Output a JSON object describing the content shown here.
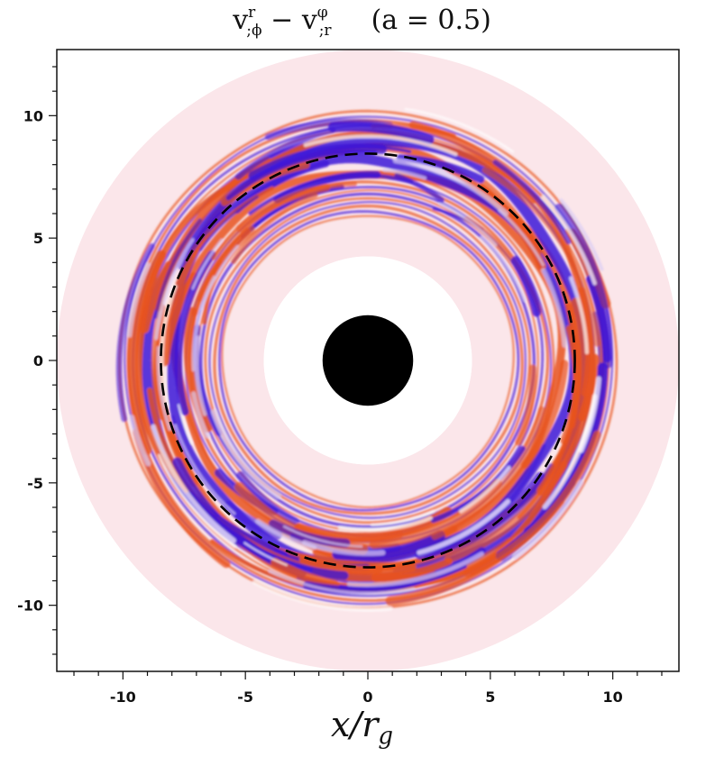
{
  "chart_data": {
    "type": "heatmap",
    "title_parts": {
      "v1": "v",
      "sub1": ";ϕ",
      "sup1": "r",
      "minus": " − ",
      "v2": "v",
      "sub2": ";r",
      "sup2": "φ",
      "param": "(a = 0.5)"
    },
    "xlabel": "x/r",
    "xlabel_sub": "g",
    "ylabel": "",
    "xlim": [
      -12.7,
      12.7
    ],
    "ylim": [
      -12.7,
      12.7
    ],
    "xticks": [
      -10,
      -5,
      0,
      5,
      10
    ],
    "xtick_labels": [
      "-10",
      "-5",
      "0",
      "5",
      "10"
    ],
    "yticks": [
      -10,
      -5,
      0,
      5,
      10
    ],
    "ytick_labels": [
      "-10",
      "-5",
      "0",
      "5",
      "10"
    ],
    "grid": false,
    "field": {
      "inner_radius": 4.25,
      "outer_radius": 12.7,
      "active_inner_radius": 5.8,
      "active_outer_radius": 10.0,
      "background_color": "#fbe6ea"
    },
    "black_hole": {
      "radius": 1.85,
      "color": "#000000"
    },
    "reference_circle": {
      "radius": 8.45,
      "style": "dashed",
      "color": "#000000"
    },
    "colormap": {
      "negative": "#3d14d8",
      "zero": "#fbe6ea",
      "positive": "#e8531f"
    }
  }
}
